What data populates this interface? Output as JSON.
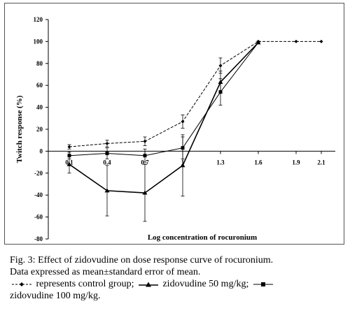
{
  "chart_data": {
    "type": "line",
    "ylabel": "Twitch response (%)",
    "xlabel": "Log concentration of rocuronium",
    "categories": [
      "0.1",
      "0.4",
      "0.7",
      "1",
      "1.3",
      "1.6",
      "1.9",
      "2.1"
    ],
    "y_ticks": [
      "120",
      "100",
      "80",
      "60",
      "40",
      "20",
      "0",
      "-20",
      "-40",
      "-60",
      "-80"
    ],
    "ylim": [
      -80,
      120
    ],
    "grid": false,
    "series": [
      {
        "key": "control",
        "style": "dashed",
        "marker": "diamond",
        "color": "#000000",
        "x": [
          0.1,
          0.4,
          0.7,
          1.0,
          1.3,
          1.6,
          1.9,
          2.1
        ],
        "values": [
          4,
          7,
          9,
          27,
          78,
          100,
          100,
          100
        ],
        "error": [
          2,
          3,
          4,
          6,
          7,
          0,
          0,
          0
        ]
      },
      {
        "key": "zidovudine_50",
        "style": "solid",
        "marker": "triangle",
        "color": "#000000",
        "x": [
          0.1,
          0.4,
          0.7,
          1.0,
          1.3,
          1.6
        ],
        "values": [
          -12,
          -36,
          -38,
          -13,
          63,
          99
        ],
        "error": [
          8,
          23,
          26,
          28,
          10,
          0
        ]
      },
      {
        "key": "zidovudine_100",
        "style": "solid-thin",
        "marker": "square",
        "color": "#000000",
        "x": [
          0.1,
          0.4,
          0.7,
          1.0,
          1.3,
          1.6
        ],
        "values": [
          -4,
          -2,
          -4,
          3,
          54,
          99
        ],
        "error": [
          3,
          5,
          6,
          10,
          12,
          0
        ]
      }
    ]
  },
  "caption": {
    "line1": "Fig. 3: Effect of zidovudine on dose response curve of rocuronium.",
    "line2": "Data expressed as mean±standard error of mean.",
    "legend_control": "represents control group;",
    "legend_50": "zidovudine 50 mg/kg;",
    "legend_100": "zidovudine 100 mg/kg."
  }
}
